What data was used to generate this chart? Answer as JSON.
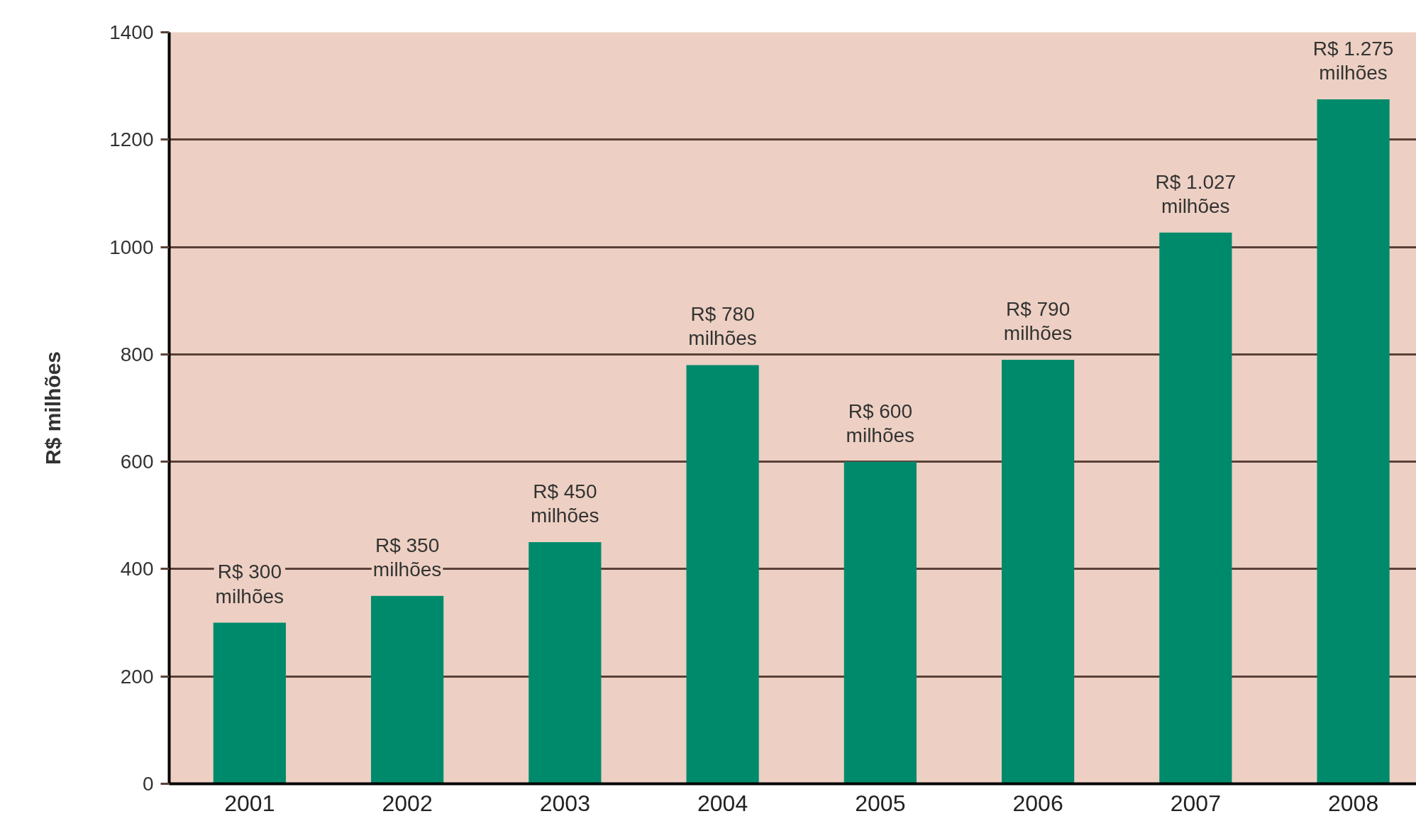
{
  "chart_data": {
    "type": "bar",
    "ylabel": "R$ milhões",
    "categories": [
      "2001",
      "2002",
      "2003",
      "2004",
      "2005",
      "2006",
      "2007",
      "2008"
    ],
    "values": [
      300,
      350,
      450,
      780,
      600,
      790,
      1027,
      1275
    ],
    "value_labels": [
      "R$ 300\nmilhões",
      "R$ 350\nmilhões",
      "R$ 450\nmilhões",
      "R$ 780\nmilhões",
      "R$ 600\nmilhões",
      "R$ 790\nmilhões",
      "R$ 1.027\nmilhões",
      "R$ 1.275\nmilhões"
    ],
    "color": "#008a6c",
    "ylim": [
      0,
      1400
    ],
    "yticks": [
      0,
      200,
      400,
      600,
      800,
      1000,
      1200,
      1400
    ],
    "grid": "y"
  }
}
